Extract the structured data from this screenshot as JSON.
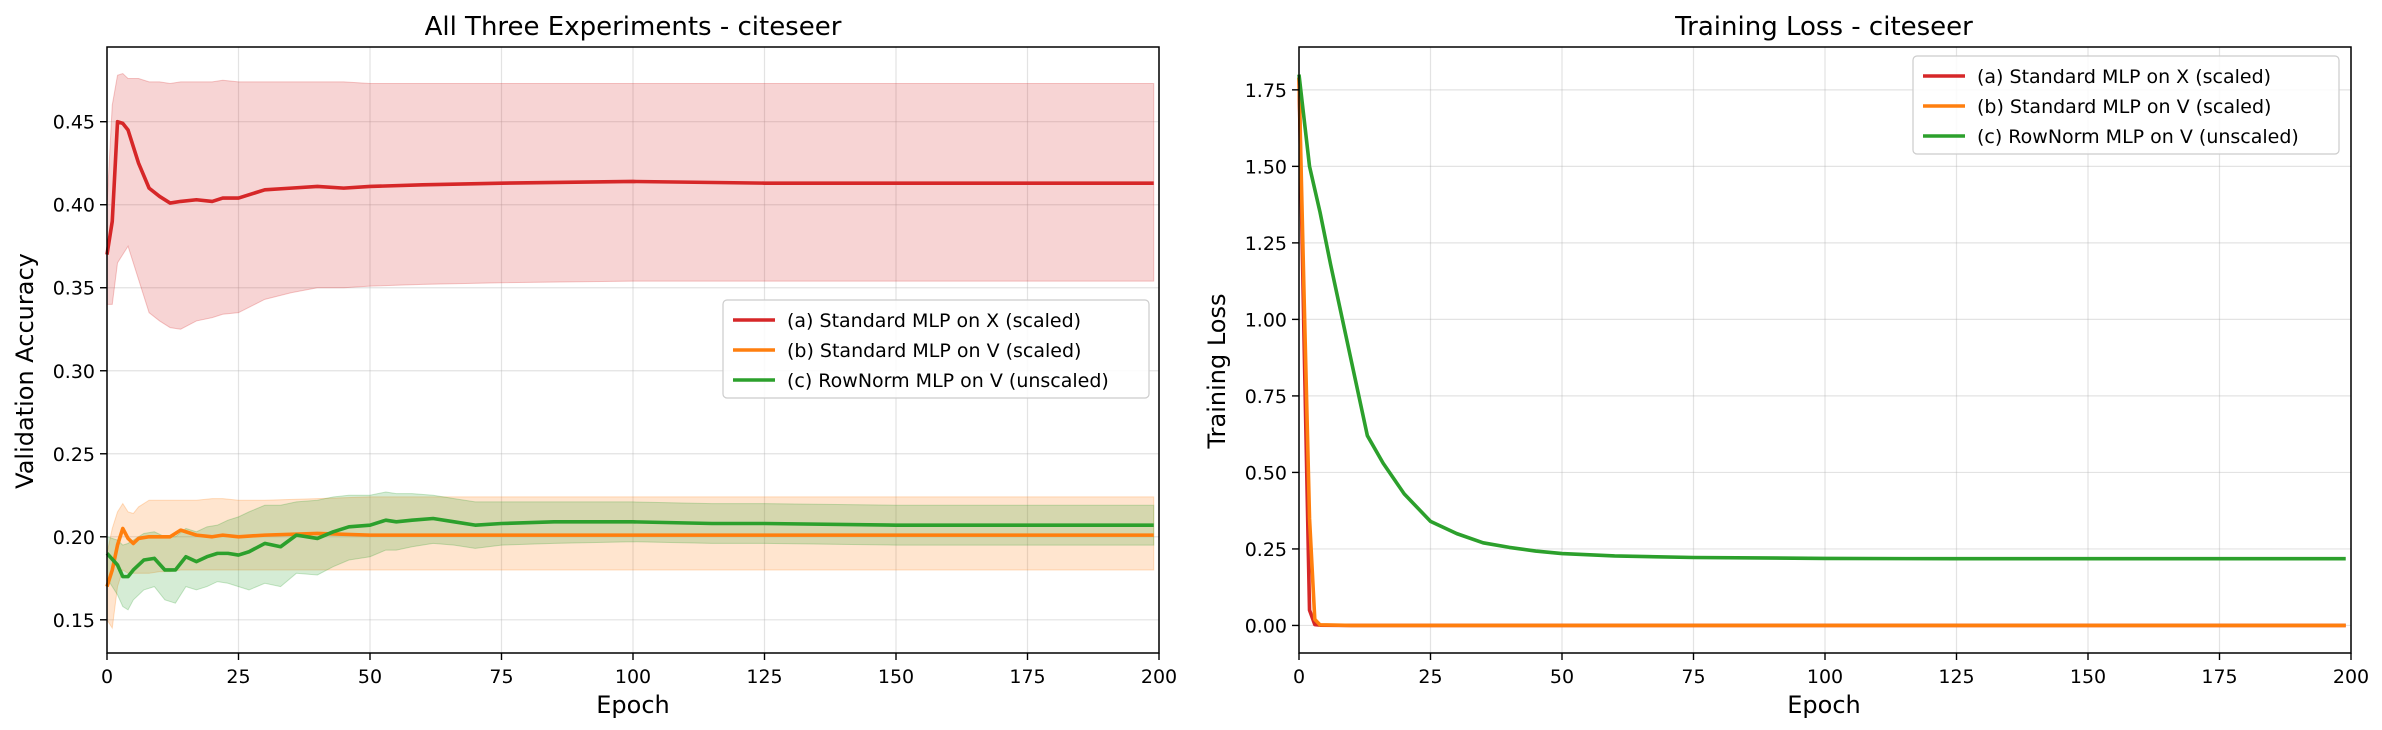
{
  "colors": {
    "a": "#d62728",
    "b": "#ff7f0e",
    "c": "#2ca02c"
  },
  "chart_data": [
    {
      "type": "line",
      "title": "All Three Experiments - citeseer",
      "xlabel": "Epoch",
      "ylabel": "Validation Accuracy",
      "xlim": [
        0,
        200
      ],
      "ylim": [
        0.13,
        0.495
      ],
      "xticks": [
        0,
        25,
        50,
        75,
        100,
        125,
        150,
        175,
        200
      ],
      "xtick_labels": [
        "0",
        "25",
        "50",
        "75",
        "100",
        "125",
        "150",
        "175",
        "200"
      ],
      "yticks": [
        0.15,
        0.2,
        0.25,
        0.3,
        0.35,
        0.4,
        0.45
      ],
      "ytick_labels": [
        "0.15",
        "0.20",
        "0.25",
        "0.30",
        "0.35",
        "0.40",
        "0.45"
      ],
      "grid": true,
      "legend_position": "center-right",
      "series": [
        {
          "name": "(a) Standard MLP on X (scaled)",
          "color_key": "a",
          "x": [
            0,
            1,
            2,
            3,
            4,
            6,
            8,
            10,
            12,
            14,
            17,
            20,
            22,
            25,
            30,
            35,
            40,
            45,
            50,
            60,
            75,
            100,
            125,
            150,
            175,
            199
          ],
          "values": [
            0.37,
            0.39,
            0.45,
            0.449,
            0.445,
            0.425,
            0.41,
            0.405,
            0.401,
            0.402,
            0.403,
            0.402,
            0.404,
            0.404,
            0.409,
            0.41,
            0.411,
            0.41,
            0.411,
            0.412,
            0.413,
            0.414,
            0.413,
            0.413,
            0.413,
            0.413
          ],
          "upper": [
            0.4,
            0.46,
            0.478,
            0.479,
            0.476,
            0.476,
            0.474,
            0.474,
            0.473,
            0.474,
            0.474,
            0.474,
            0.475,
            0.474,
            0.474,
            0.474,
            0.474,
            0.474,
            0.473,
            0.473,
            0.473,
            0.473,
            0.473,
            0.473,
            0.473,
            0.473
          ],
          "lower": [
            0.34,
            0.34,
            0.365,
            0.37,
            0.375,
            0.355,
            0.335,
            0.33,
            0.326,
            0.325,
            0.33,
            0.332,
            0.334,
            0.335,
            0.343,
            0.347,
            0.35,
            0.35,
            0.351,
            0.352,
            0.353,
            0.354,
            0.354,
            0.354,
            0.354,
            0.354
          ]
        },
        {
          "name": "(b) Standard MLP on V (scaled)",
          "color_key": "b",
          "x": [
            0,
            1,
            2,
            3,
            4,
            5,
            6,
            8,
            10,
            12,
            14,
            17,
            20,
            22,
            25,
            30,
            40,
            50,
            75,
            100,
            125,
            150,
            175,
            199
          ],
          "values": [
            0.17,
            0.18,
            0.195,
            0.205,
            0.199,
            0.196,
            0.199,
            0.2,
            0.2,
            0.2,
            0.204,
            0.201,
            0.2,
            0.201,
            0.2,
            0.201,
            0.202,
            0.201,
            0.201,
            0.201,
            0.201,
            0.201,
            0.201,
            0.201
          ],
          "upper": [
            0.19,
            0.205,
            0.215,
            0.22,
            0.215,
            0.214,
            0.218,
            0.222,
            0.222,
            0.222,
            0.222,
            0.222,
            0.223,
            0.223,
            0.222,
            0.222,
            0.223,
            0.224,
            0.224,
            0.224,
            0.224,
            0.224,
            0.224,
            0.224
          ],
          "lower": [
            0.15,
            0.145,
            0.17,
            0.18,
            0.178,
            0.178,
            0.178,
            0.178,
            0.179,
            0.179,
            0.18,
            0.18,
            0.18,
            0.18,
            0.18,
            0.18,
            0.18,
            0.18,
            0.18,
            0.18,
            0.18,
            0.18,
            0.18,
            0.18
          ]
        },
        {
          "name": "(c) RowNorm MLP on V (unscaled)",
          "color_key": "c",
          "x": [
            0,
            2,
            3,
            4,
            5,
            7,
            9,
            11,
            13,
            15,
            17,
            19,
            21,
            23,
            25,
            27,
            30,
            33,
            36,
            40,
            43,
            46,
            50,
            53,
            55,
            58,
            62,
            66,
            70,
            75,
            85,
            100,
            115,
            125,
            150,
            175,
            199
          ],
          "values": [
            0.19,
            0.183,
            0.176,
            0.176,
            0.18,
            0.186,
            0.187,
            0.18,
            0.18,
            0.188,
            0.185,
            0.188,
            0.19,
            0.19,
            0.189,
            0.191,
            0.196,
            0.194,
            0.201,
            0.199,
            0.203,
            0.206,
            0.207,
            0.21,
            0.209,
            0.21,
            0.211,
            0.209,
            0.207,
            0.208,
            0.209,
            0.209,
            0.208,
            0.208,
            0.207,
            0.207,
            0.207
          ],
          "upper": [
            0.2,
            0.198,
            0.195,
            0.196,
            0.198,
            0.202,
            0.203,
            0.2,
            0.2,
            0.205,
            0.203,
            0.206,
            0.207,
            0.21,
            0.212,
            0.215,
            0.219,
            0.219,
            0.221,
            0.222,
            0.224,
            0.225,
            0.225,
            0.227,
            0.226,
            0.226,
            0.225,
            0.223,
            0.221,
            0.221,
            0.221,
            0.221,
            0.22,
            0.22,
            0.219,
            0.219,
            0.219
          ],
          "lower": [
            0.175,
            0.165,
            0.158,
            0.156,
            0.162,
            0.168,
            0.17,
            0.162,
            0.16,
            0.17,
            0.168,
            0.17,
            0.173,
            0.172,
            0.17,
            0.168,
            0.172,
            0.17,
            0.178,
            0.177,
            0.182,
            0.186,
            0.188,
            0.192,
            0.192,
            0.194,
            0.196,
            0.195,
            0.193,
            0.195,
            0.196,
            0.197,
            0.196,
            0.196,
            0.195,
            0.195,
            0.195
          ]
        }
      ]
    },
    {
      "type": "line",
      "title": "Training Loss - citeseer",
      "xlabel": "Epoch",
      "ylabel": "Training Loss",
      "xlim": [
        0,
        200
      ],
      "ylim": [
        -0.09,
        1.89
      ],
      "xticks": [
        0,
        25,
        50,
        75,
        100,
        125,
        150,
        175,
        200
      ],
      "xtick_labels": [
        "0",
        "25",
        "50",
        "75",
        "100",
        "125",
        "150",
        "175",
        "200"
      ],
      "yticks": [
        0.0,
        0.25,
        0.5,
        0.75,
        1.0,
        1.25,
        1.5,
        1.75
      ],
      "ytick_labels": [
        "0.00",
        "0.25",
        "0.50",
        "0.75",
        "1.00",
        "1.25",
        "1.50",
        "1.75"
      ],
      "grid": true,
      "legend_position": "top-right",
      "series": [
        {
          "name": "(a) Standard MLP on X (scaled)",
          "color_key": "a",
          "x": [
            0,
            1,
            2,
            3,
            4,
            10,
            50,
            100,
            150,
            199
          ],
          "values": [
            1.79,
            0.9,
            0.05,
            0.003,
            0.001,
            0.0,
            0.0,
            0.0,
            0.0,
            0.0
          ]
        },
        {
          "name": "(b) Standard MLP on V (scaled)",
          "color_key": "b",
          "x": [
            0,
            1,
            2,
            3,
            4,
            10,
            50,
            100,
            150,
            199
          ],
          "values": [
            1.79,
            1.05,
            0.35,
            0.02,
            0.002,
            0.0,
            0.0,
            0.0,
            0.0,
            0.0
          ]
        },
        {
          "name": "(c) RowNorm MLP on V (unscaled)",
          "color_key": "c",
          "x": [
            0,
            2,
            4,
            6,
            8,
            10,
            13,
            16,
            20,
            25,
            30,
            35,
            40,
            45,
            50,
            60,
            75,
            100,
            125,
            150,
            175,
            199
          ],
          "values": [
            1.8,
            1.5,
            1.35,
            1.18,
            1.02,
            0.86,
            0.62,
            0.53,
            0.43,
            0.34,
            0.3,
            0.27,
            0.255,
            0.243,
            0.235,
            0.227,
            0.222,
            0.219,
            0.218,
            0.218,
            0.218,
            0.218
          ]
        }
      ]
    }
  ]
}
